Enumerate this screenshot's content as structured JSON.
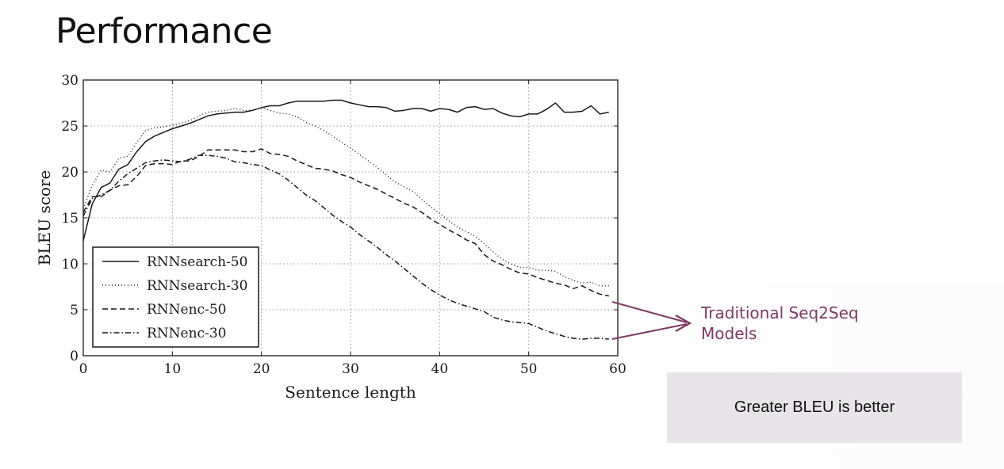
{
  "slide": {
    "title": "Performance",
    "callout_line1": "Traditional Seq2Seq",
    "callout_line2": "Models",
    "note": "Greater BLEU is better"
  },
  "colors": {
    "callout": "#7b3b64",
    "note_bg": "#e7e5e8",
    "line": "#1a1a1a"
  },
  "chart_data": {
    "type": "line",
    "title": "",
    "xlabel": "Sentence length",
    "ylabel": "BLEU score",
    "xlim": [
      0,
      60
    ],
    "ylim": [
      0,
      30
    ],
    "xticks": [
      0,
      10,
      20,
      30,
      40,
      50,
      60
    ],
    "yticks": [
      0,
      5,
      10,
      15,
      20,
      25,
      30
    ],
    "grid": true,
    "legend_position": "bottom-left",
    "series": [
      {
        "name": "RNNsearch-50",
        "style": "solid",
        "x": [
          0,
          1,
          2,
          3,
          4,
          5,
          6,
          7,
          8,
          9,
          10,
          11,
          12,
          13,
          14,
          15,
          16,
          17,
          18,
          19,
          20,
          21,
          22,
          23,
          24,
          25,
          26,
          27,
          28,
          29,
          30,
          31,
          32,
          33,
          34,
          35,
          36,
          37,
          38,
          39,
          40,
          41,
          42,
          43,
          44,
          45,
          46,
          47,
          48,
          49,
          50,
          51,
          52,
          53,
          54,
          55,
          56,
          57,
          58,
          59
        ],
        "y": [
          12.5,
          16.5,
          18.3,
          18.8,
          20.3,
          20.8,
          22.2,
          23.3,
          23.9,
          24.3,
          24.7,
          25.0,
          25.3,
          25.7,
          26.1,
          26.3,
          26.4,
          26.5,
          26.5,
          26.7,
          27.0,
          27.2,
          27.2,
          27.5,
          27.7,
          27.7,
          27.7,
          27.7,
          27.8,
          27.8,
          27.5,
          27.3,
          27.1,
          27.1,
          27.0,
          26.6,
          26.7,
          26.9,
          26.9,
          26.6,
          26.9,
          26.8,
          26.5,
          27.0,
          27.1,
          26.8,
          26.9,
          26.4,
          26.1,
          26.0,
          26.3,
          26.3,
          26.8,
          27.5,
          26.5,
          26.5,
          26.6,
          27.2,
          26.3,
          26.5
        ]
      },
      {
        "name": "RNNsearch-30",
        "style": "dotted",
        "x": [
          0,
          1,
          2,
          3,
          4,
          5,
          6,
          7,
          8,
          9,
          10,
          11,
          12,
          13,
          14,
          15,
          16,
          17,
          18,
          19,
          20,
          21,
          22,
          23,
          24,
          25,
          26,
          27,
          28,
          29,
          30,
          31,
          32,
          33,
          34,
          35,
          36,
          37,
          38,
          39,
          40,
          41,
          42,
          43,
          44,
          45,
          46,
          47,
          48,
          49,
          50,
          51,
          52,
          53,
          54,
          55,
          56,
          57,
          58,
          59
        ],
        "y": [
          16.0,
          18.5,
          20.2,
          20.0,
          21.5,
          21.7,
          23.2,
          24.5,
          24.8,
          24.9,
          25.1,
          25.3,
          25.6,
          26.1,
          26.5,
          26.6,
          26.7,
          26.9,
          26.7,
          26.7,
          27.0,
          26.7,
          26.4,
          26.3,
          26.0,
          25.4,
          25.0,
          24.5,
          23.9,
          23.2,
          22.6,
          21.9,
          21.2,
          20.5,
          19.7,
          18.9,
          18.4,
          17.9,
          17.0,
          16.2,
          15.5,
          14.7,
          14.0,
          13.5,
          13.0,
          12.2,
          11.3,
          10.5,
          10.0,
          9.6,
          9.6,
          9.3,
          9.3,
          9.2,
          8.6,
          8.2,
          7.9,
          8.0,
          7.6,
          7.6
        ]
      },
      {
        "name": "RNNenc-50",
        "style": "dashed",
        "x": [
          0,
          1,
          2,
          3,
          4,
          5,
          6,
          7,
          8,
          9,
          10,
          11,
          12,
          13,
          14,
          15,
          16,
          17,
          18,
          19,
          20,
          21,
          22,
          23,
          24,
          25,
          26,
          27,
          28,
          29,
          30,
          31,
          32,
          33,
          34,
          35,
          36,
          37,
          38,
          39,
          40,
          41,
          42,
          43,
          44,
          45,
          46,
          47,
          48,
          49,
          50,
          51,
          52,
          53,
          54,
          55,
          56,
          57,
          58,
          59
        ],
        "y": [
          15.6,
          17.3,
          17.3,
          18.0,
          18.5,
          18.6,
          19.5,
          20.7,
          20.9,
          20.9,
          20.8,
          21.2,
          21.2,
          21.7,
          22.4,
          22.4,
          22.4,
          22.4,
          22.2,
          22.2,
          22.5,
          22.0,
          21.9,
          21.7,
          21.2,
          20.8,
          20.4,
          20.3,
          20.1,
          19.7,
          19.4,
          18.9,
          18.5,
          18.1,
          17.6,
          17.1,
          16.6,
          16.2,
          15.6,
          14.9,
          14.3,
          13.7,
          13.2,
          12.6,
          12.2,
          11.0,
          10.3,
          9.9,
          9.4,
          9.0,
          8.9,
          8.5,
          8.2,
          7.9,
          7.7,
          7.3,
          7.6,
          7.1,
          6.7,
          6.5
        ]
      },
      {
        "name": "RNNenc-30",
        "style": "dashdot",
        "x": [
          0,
          1,
          2,
          3,
          4,
          5,
          6,
          7,
          8,
          9,
          10,
          11,
          12,
          13,
          14,
          15,
          16,
          17,
          18,
          19,
          20,
          21,
          22,
          23,
          24,
          25,
          26,
          27,
          28,
          29,
          30,
          31,
          32,
          33,
          34,
          35,
          36,
          37,
          38,
          39,
          40,
          41,
          42,
          43,
          44,
          45,
          46,
          47,
          48,
          49,
          50,
          51,
          52,
          53,
          54,
          55,
          56,
          57,
          58,
          59
        ],
        "y": [
          15.2,
          17.1,
          17.5,
          18.0,
          19.0,
          19.8,
          20.4,
          21.0,
          21.2,
          21.3,
          21.2,
          21.1,
          21.4,
          21.8,
          21.8,
          21.7,
          21.5,
          21.1,
          21.0,
          20.8,
          20.7,
          20.2,
          19.8,
          19.1,
          18.3,
          17.5,
          16.9,
          16.1,
          15.3,
          14.6,
          14.0,
          13.2,
          12.5,
          11.8,
          11.0,
          10.3,
          9.5,
          8.7,
          7.9,
          7.2,
          6.6,
          6.1,
          5.7,
          5.4,
          5.1,
          4.8,
          4.2,
          3.9,
          3.7,
          3.6,
          3.5,
          3.1,
          2.7,
          2.4,
          2.1,
          1.9,
          1.8,
          1.9,
          1.9,
          1.8
        ]
      }
    ]
  }
}
